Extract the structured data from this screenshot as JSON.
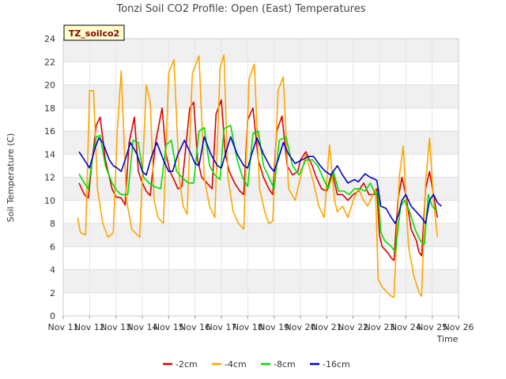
{
  "chart_data": {
    "type": "line",
    "title": "Tonzi Soil CO2 Profile: Open (East) Temperatures",
    "badge": "TZ_soilco2",
    "xlabel": "Time",
    "ylabel": "Soil Temperature (C)",
    "xlim": [
      11,
      26
    ],
    "ylim": [
      0,
      24
    ],
    "x_ticks": [
      {
        "v": 11,
        "label": "Nov 11"
      },
      {
        "v": 12,
        "label": "Nov 12"
      },
      {
        "v": 13,
        "label": "Nov 13"
      },
      {
        "v": 14,
        "label": "Nov 14"
      },
      {
        "v": 15,
        "label": "Nov 15"
      },
      {
        "v": 16,
        "label": "Nov 16"
      },
      {
        "v": 17,
        "label": "Nov 17"
      },
      {
        "v": 18,
        "label": "Nov 18"
      },
      {
        "v": 19,
        "label": "Nov 19"
      },
      {
        "v": 20,
        "label": "Nov 20"
      },
      {
        "v": 21,
        "label": "Nov 21"
      },
      {
        "v": 22,
        "label": "Nov 22"
      },
      {
        "v": 23,
        "label": "Nov 23"
      },
      {
        "v": 24,
        "label": "Nov 24"
      },
      {
        "v": 25,
        "label": "Nov 25"
      },
      {
        "v": 26,
        "label": "Nov 26"
      }
    ],
    "y_ticks": [
      0,
      2,
      4,
      6,
      8,
      10,
      12,
      14,
      16,
      18,
      20,
      22,
      24
    ],
    "grid": true,
    "legend_position": "bottom",
    "series": [
      {
        "name": "-2cm",
        "color": "#dd0000",
        "x": [
          11.6,
          11.8,
          11.95,
          12.1,
          12.25,
          12.4,
          12.6,
          12.85,
          13.0,
          13.2,
          13.35,
          13.5,
          13.7,
          13.85,
          14.0,
          14.15,
          14.3,
          14.5,
          14.75,
          14.9,
          15.05,
          15.2,
          15.35,
          15.5,
          15.8,
          15.95,
          16.1,
          16.25,
          16.45,
          16.65,
          16.8,
          17.0,
          17.15,
          17.3,
          17.5,
          17.7,
          17.85,
          18.0,
          18.2,
          18.4,
          18.6,
          18.8,
          18.95,
          19.1,
          19.3,
          19.5,
          19.7,
          19.9,
          20.0,
          20.2,
          20.45,
          20.6,
          20.8,
          21.0,
          21.2,
          21.4,
          21.6,
          21.8,
          22.0,
          22.2,
          22.4,
          22.6,
          22.8,
          22.9,
          23.0,
          23.1,
          23.3,
          23.45,
          23.55,
          23.7,
          23.85,
          24.0,
          24.2,
          24.4,
          24.5,
          24.6,
          24.75,
          24.9,
          25.05,
          25.2
        ],
        "y": [
          11.5,
          10.5,
          10.2,
          13.5,
          16.5,
          17.2,
          13.5,
          11.0,
          10.3,
          10.2,
          9.6,
          15.0,
          17.2,
          12.5,
          11.5,
          10.8,
          10.4,
          15.0,
          18.0,
          14.0,
          12.5,
          11.8,
          11.0,
          11.2,
          18.0,
          18.5,
          13.5,
          12.0,
          11.5,
          11.0,
          17.5,
          18.7,
          14.0,
          12.5,
          11.5,
          10.8,
          10.5,
          17.0,
          18.0,
          13.5,
          12.0,
          11.0,
          10.5,
          16.0,
          17.3,
          13.0,
          12.2,
          12.5,
          13.5,
          14.2,
          13.0,
          12.0,
          11.0,
          10.8,
          12.5,
          10.5,
          10.5,
          10.0,
          10.5,
          10.8,
          11.5,
          10.5,
          10.5,
          11.0,
          7.0,
          6.0,
          5.5,
          5.0,
          4.8,
          10.0,
          12.0,
          10.5,
          7.5,
          6.5,
          5.5,
          5.2,
          11.0,
          12.5,
          10.5,
          8.5
        ]
      },
      {
        "name": "-4cm",
        "color": "#ffa500",
        "x": [
          11.55,
          11.65,
          11.85,
          12.0,
          12.15,
          12.3,
          12.5,
          12.7,
          12.9,
          13.05,
          13.2,
          13.4,
          13.6,
          13.9,
          14.15,
          14.3,
          14.45,
          14.6,
          14.8,
          15.0,
          15.2,
          15.4,
          15.55,
          15.7,
          15.9,
          16.15,
          16.35,
          16.55,
          16.75,
          16.95,
          17.1,
          17.25,
          17.45,
          17.65,
          17.85,
          18.05,
          18.25,
          18.45,
          18.65,
          18.8,
          18.95,
          19.15,
          19.35,
          19.55,
          19.8,
          20.0,
          20.2,
          20.5,
          20.7,
          20.9,
          21.1,
          21.3,
          21.4,
          21.6,
          21.8,
          22.0,
          22.2,
          22.4,
          22.55,
          22.75,
          22.85,
          22.95,
          23.1,
          23.3,
          23.45,
          23.55,
          23.75,
          23.9,
          24.1,
          24.3,
          24.5,
          24.6,
          24.75,
          24.9,
          25.05,
          25.2
        ],
        "y": [
          8.5,
          7.2,
          7.0,
          19.5,
          19.5,
          11.0,
          8.0,
          6.8,
          7.2,
          16.0,
          21.2,
          10.0,
          7.5,
          6.8,
          20.0,
          18.5,
          10.0,
          8.5,
          8.0,
          21.0,
          22.2,
          12.0,
          9.5,
          8.8,
          21.0,
          22.5,
          12.0,
          9.5,
          8.5,
          21.5,
          22.6,
          12.0,
          9.0,
          8.0,
          7.5,
          20.5,
          21.8,
          11.0,
          9.0,
          8.0,
          8.2,
          19.5,
          20.7,
          11.0,
          10.0,
          12.0,
          14.0,
          11.5,
          9.5,
          8.5,
          14.8,
          10.0,
          9.0,
          9.5,
          8.5,
          10.0,
          11.0,
          10.0,
          9.5,
          10.5,
          11.0,
          3.2,
          2.5,
          2.0,
          1.7,
          1.6,
          12.0,
          14.7,
          6.0,
          3.5,
          2.0,
          1.7,
          11.5,
          15.4,
          10.0,
          6.8
        ]
      },
      {
        "name": "-8cm",
        "color": "#00dd00",
        "x": [
          11.6,
          11.8,
          11.95,
          12.1,
          12.25,
          12.4,
          12.6,
          12.85,
          13.05,
          13.2,
          13.45,
          13.65,
          13.85,
          14.05,
          14.25,
          14.45,
          14.7,
          14.9,
          15.1,
          15.3,
          15.5,
          15.75,
          15.95,
          16.15,
          16.35,
          16.55,
          16.75,
          16.95,
          17.1,
          17.35,
          17.6,
          17.8,
          18.0,
          18.2,
          18.4,
          18.6,
          18.8,
          19.0,
          19.2,
          19.45,
          19.7,
          19.95,
          20.2,
          20.45,
          20.65,
          20.85,
          21.05,
          21.25,
          21.45,
          21.65,
          21.85,
          22.05,
          22.25,
          22.45,
          22.65,
          22.85,
          22.95,
          23.05,
          23.2,
          23.45,
          23.6,
          23.8,
          23.95,
          24.15,
          24.35,
          24.55,
          24.7,
          24.85,
          25.0,
          25.2
        ],
        "y": [
          12.3,
          11.5,
          11.0,
          13.5,
          15.5,
          15.6,
          13.0,
          11.5,
          10.8,
          10.5,
          10.5,
          15.2,
          15.0,
          12.0,
          11.5,
          11.2,
          11.0,
          14.8,
          15.2,
          12.5,
          12.0,
          11.5,
          11.5,
          16.0,
          16.3,
          13.0,
          12.2,
          11.8,
          16.2,
          16.5,
          13.5,
          12.0,
          11.2,
          15.8,
          16.0,
          13.0,
          12.0,
          11.0,
          15.2,
          15.5,
          13.0,
          12.2,
          13.5,
          13.5,
          13.0,
          12.0,
          11.0,
          12.5,
          10.8,
          10.8,
          10.5,
          11.0,
          11.0,
          10.8,
          11.5,
          10.5,
          10.8,
          7.2,
          6.5,
          6.0,
          5.5,
          9.5,
          10.0,
          9.0,
          7.5,
          6.5,
          6.2,
          10.5,
          9.5,
          9.0
        ]
      },
      {
        "name": "-16cm",
        "color": "#0000cc",
        "x": [
          11.6,
          11.8,
          12.0,
          12.2,
          12.35,
          12.5,
          12.75,
          12.9,
          13.05,
          13.2,
          13.35,
          13.55,
          13.8,
          14.0,
          14.15,
          14.35,
          14.55,
          14.8,
          15.0,
          15.15,
          15.35,
          15.6,
          15.85,
          16.0,
          16.15,
          16.35,
          16.6,
          16.85,
          17.0,
          17.15,
          17.35,
          17.6,
          17.85,
          18.0,
          18.15,
          18.35,
          18.6,
          18.85,
          19.0,
          19.15,
          19.35,
          19.55,
          19.8,
          20.05,
          20.3,
          20.5,
          20.75,
          20.95,
          21.15,
          21.4,
          21.6,
          21.8,
          22.05,
          22.2,
          22.45,
          22.65,
          22.85,
          22.9,
          23.05,
          23.25,
          23.45,
          23.6,
          23.75,
          23.85,
          24.0,
          24.2,
          24.4,
          24.6,
          24.75,
          24.9,
          25.05,
          25.2,
          25.35
        ],
        "y": [
          14.2,
          13.5,
          12.8,
          14.5,
          15.4,
          15.0,
          13.5,
          13.0,
          12.8,
          12.5,
          13.5,
          15.0,
          14.0,
          12.5,
          12.2,
          13.8,
          15.0,
          13.5,
          12.5,
          12.5,
          14.0,
          15.2,
          14.0,
          13.2,
          13.0,
          15.5,
          14.0,
          13.0,
          12.8,
          14.0,
          15.5,
          14.0,
          13.0,
          12.8,
          14.0,
          15.4,
          14.0,
          12.9,
          12.5,
          13.5,
          15.0,
          14.0,
          13.2,
          13.5,
          13.8,
          13.8,
          13.0,
          12.5,
          12.2,
          13.0,
          12.2,
          11.5,
          11.8,
          11.6,
          12.3,
          12.0,
          11.8,
          11.7,
          9.5,
          9.3,
          8.5,
          8.0,
          9.0,
          10.0,
          10.5,
          9.5,
          9.0,
          8.5,
          8.0,
          10.0,
          10.5,
          9.8,
          9.5
        ]
      }
    ]
  }
}
